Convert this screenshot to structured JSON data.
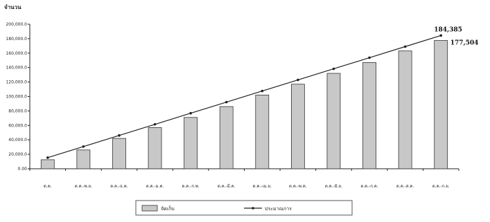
{
  "chart_data": {
    "type": "bar",
    "ylabel": "จำนวน",
    "ylim": [
      0,
      200000
    ],
    "yticks": [
      "0.00",
      "20,000.0",
      "40,000.0",
      "60,000.0",
      "80,000.0",
      "100,000.0",
      "120,000.0",
      "140,000.0",
      "160,000.0",
      "180,000.0",
      "200,000.0"
    ],
    "categories": [
      "ต.ค.",
      "ต.ค.-พ.ย.",
      "ต.ค.-ธ.ค.",
      "ต.ค.-ม.ค.",
      "ต.ค.-ก.พ.",
      "ต.ค.-มี.ค.",
      "ต.ค.-เม.ย.",
      "ต.ค.-พ.ค.",
      "ต.ค.-มิ.ย.",
      "ต.ค.-ก.ค.",
      "ต.ค.-ส.ค.",
      "ต.ค.-ก.ย."
    ],
    "series": [
      {
        "name": "จัดเก็บ",
        "kind": "bar",
        "color": "#c8c8c8",
        "values": [
          12500,
          26000,
          42000,
          57000,
          71000,
          86000,
          102000,
          117000,
          132000,
          147000,
          163000,
          177504
        ]
      },
      {
        "name": "ประมาณการ",
        "kind": "line",
        "color": "#222222",
        "values": [
          15365,
          30730,
          46096,
          61462,
          76827,
          92193,
          107558,
          122923,
          138289,
          153654,
          169020,
          184385
        ]
      }
    ],
    "data_labels": [
      "184,385",
      "177,504"
    ],
    "legend": "bottom",
    "grid": false
  }
}
